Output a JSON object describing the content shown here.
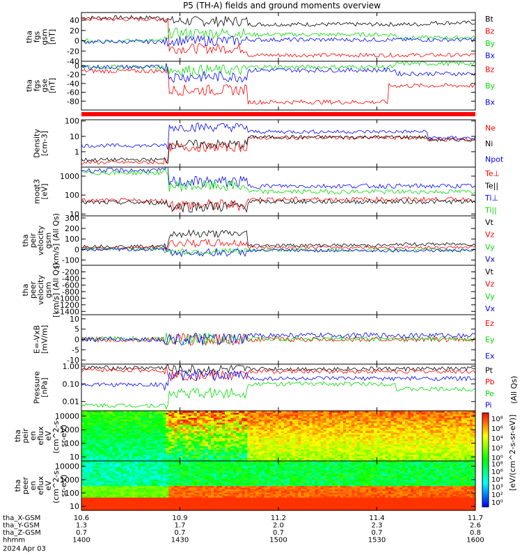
{
  "title": "P5 (TH-A) fields and ground moments overview",
  "colors": {
    "black": "#000000",
    "red": "#ff0000",
    "green": "#00dd00",
    "blue": "#0000ff"
  },
  "chart_data": [
    {
      "type": "line",
      "panel": "fgs_gsm",
      "ylabel": [
        "tha",
        "fgs",
        "gsm",
        "[nT]"
      ],
      "ylim": [
        -40,
        55
      ],
      "yticks": [
        40,
        20,
        0,
        -20,
        -40
      ],
      "legend": [
        {
          "name": "Bt",
          "color": "black"
        },
        {
          "name": "Bz",
          "color": "red"
        },
        {
          "name": "By",
          "color": "green"
        },
        {
          "name": "Bx",
          "color": "blue"
        }
      ]
    },
    {
      "type": "line",
      "panel": "fgs_gse",
      "ylabel": [
        "tha",
        "fgs",
        "gse",
        "[nT]"
      ],
      "ylim": [
        -100,
        10
      ],
      "yticks": [
        0,
        -20,
        -40,
        -60,
        -80
      ],
      "legend": [
        {
          "name": "Bz",
          "color": "red"
        },
        {
          "name": "By",
          "color": "green"
        },
        {
          "name": "Bx",
          "color": "blue"
        }
      ]
    },
    {
      "type": "line",
      "panel": "density",
      "ylabel": [
        "Density",
        "[cm-3]"
      ],
      "scale": "log",
      "ylim": [
        0.1,
        120
      ],
      "yticks": [
        {
          "v": 100,
          "t": "100"
        },
        {
          "v": 10,
          "t": "10"
        },
        {
          "v": 1,
          "t": "1"
        }
      ],
      "legend": [
        {
          "name": "Ne",
          "color": "red"
        },
        {
          "name": "Ni",
          "color": "black"
        },
        {
          "name": "Npot",
          "color": "blue"
        }
      ]
    },
    {
      "type": "line",
      "panel": "temperature",
      "ylabel": [
        "moqt3",
        "[eV]"
      ],
      "scale": "log",
      "ylim": [
        8,
        3000
      ],
      "yticks": [
        {
          "v": 1000,
          "t": "1000"
        },
        {
          "v": 100,
          "t": "100"
        },
        {
          "v": 10,
          "t": "10"
        }
      ],
      "legend": [
        {
          "name": "Te⊥",
          "color": "red"
        },
        {
          "name": "Te||",
          "color": "black"
        },
        {
          "name": "Ti⊥",
          "color": "blue"
        },
        {
          "name": "Ti||",
          "color": "green"
        }
      ]
    },
    {
      "type": "line",
      "panel": "peir_velocity",
      "ylabel": [
        "tha",
        "peir",
        "velocity",
        "gsm",
        "[km/s] (All Qs)"
      ],
      "ylim": [
        -150,
        320
      ],
      "yticks": [
        300,
        200,
        100,
        0,
        -100
      ],
      "legend": [
        {
          "name": "Vt",
          "color": "black"
        },
        {
          "name": "Vz",
          "color": "red"
        },
        {
          "name": "Vy",
          "color": "green"
        },
        {
          "name": "Vx",
          "color": "blue"
        }
      ]
    },
    {
      "type": "line",
      "panel": "peer_velocity",
      "ylabel": [
        "tha",
        "peer",
        "velocity",
        "gsm",
        "[km/s] (All Qs)"
      ],
      "ylim": [
        -1500,
        0
      ],
      "yticks": [
        -200,
        -400,
        -600,
        -800,
        -1000,
        -1200,
        -1400
      ],
      "legend": [
        {
          "name": "Vt",
          "color": "black"
        },
        {
          "name": "Vz",
          "color": "red"
        },
        {
          "name": "Vy",
          "color": "green"
        },
        {
          "name": "Vx",
          "color": "blue"
        }
      ]
    },
    {
      "type": "line",
      "panel": "efield",
      "ylabel": [
        "E=-VxB",
        "[mV/m]"
      ],
      "ylim": [
        -12,
        12
      ],
      "yticks": [
        10,
        5,
        0,
        -5,
        -10
      ],
      "legend": [
        {
          "name": "Ez",
          "color": "red"
        },
        {
          "name": "Ey",
          "color": "green"
        },
        {
          "name": "Ex",
          "color": "blue"
        }
      ]
    },
    {
      "type": "line",
      "panel": "pressure",
      "ylabel": [
        "Pressure",
        "[nPa]"
      ],
      "scale": "log",
      "ylim": [
        0.003,
        1.3
      ],
      "yticks": [
        {
          "v": 1,
          "t": "1.00"
        },
        {
          "v": 0.1,
          "t": "0.10"
        },
        {
          "v": 0.01,
          "t": "0.01"
        }
      ],
      "legend": [
        {
          "name": "Pt",
          "color": "black"
        },
        {
          "name": "Pb",
          "color": "red"
        },
        {
          "name": "Pe",
          "color": "green"
        },
        {
          "name": "Pi",
          "color": "blue"
        }
      ]
    },
    {
      "type": "heatmap",
      "panel": "peir_eflux",
      "ylabel": [
        "tha",
        "peir",
        "en",
        "eflux",
        "eV",
        "(cm^2-s-",
        "sr-eV)"
      ],
      "scale": "log",
      "ylim": [
        5,
        25000
      ],
      "yticks": [
        {
          "v": 10000,
          "t": "10000"
        },
        {
          "v": 1000,
          "t": "1000"
        },
        {
          "v": 100,
          "t": "100"
        },
        {
          "v": 10,
          "t": "10"
        }
      ]
    },
    {
      "type": "heatmap",
      "panel": "peer_eflux",
      "ylabel": [
        "tha",
        "peer",
        "en",
        "eflux",
        "eV",
        "(cm^2-s-",
        "sr-eV)"
      ],
      "scale": "log",
      "ylim": [
        5,
        25000
      ],
      "yticks": [
        {
          "v": 10000,
          "t": "10000"
        },
        {
          "v": 1000,
          "t": "1000"
        },
        {
          "v": 100,
          "t": "100"
        },
        {
          "v": 10,
          "t": "10"
        }
      ]
    }
  ],
  "colorbar": {
    "label": "[eV/(cm^2-s-sr-eV)]",
    "sublabel": "(All Qs)",
    "ticks_upper": [
      "10⁸",
      "10⁶",
      "10⁴",
      "10²",
      "10⁰"
    ],
    "ticks_lower": [
      "10⁸",
      "10⁶",
      "10⁴",
      "10³",
      "10²",
      "10⁰"
    ]
  },
  "xaxis": {
    "rows": [
      {
        "label": "tha_X-GSM",
        "values": [
          "10.6",
          "10.9",
          "11.2",
          "11.4",
          "11.7"
        ]
      },
      {
        "label": "tha_Y-GSM",
        "values": [
          "1.3",
          "1.7",
          "2.0",
          "2.3",
          "2.6"
        ]
      },
      {
        "label": "tha_Z-GSM",
        "values": [
          "0.7",
          "0.7",
          "0.7",
          "0.7",
          "0.8"
        ]
      },
      {
        "label": "hhmm",
        "values": [
          "1400",
          "1430",
          "1500",
          "1530",
          "1600"
        ]
      }
    ],
    "date": "2024 Apr 03"
  }
}
